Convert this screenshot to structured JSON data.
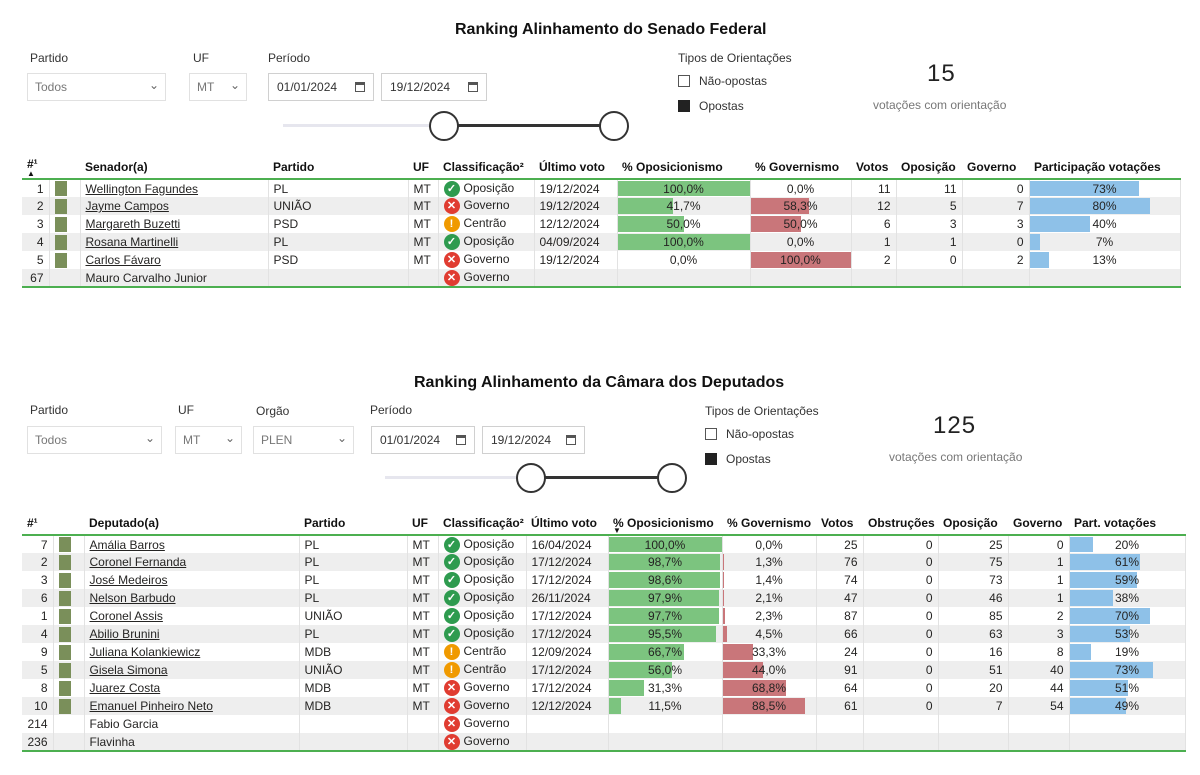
{
  "senado": {
    "title": "Ranking Alinhamento do Senado Federal",
    "filters": {
      "partido_label": "Partido",
      "partido_value": "Todos",
      "uf_label": "UF",
      "uf_value": "MT",
      "periodo_label": "Período",
      "date_start": "01/01/2024",
      "date_end": "19/12/2024"
    },
    "orient": {
      "title": "Tipos de Orientações",
      "opt1": "Não-opostas",
      "opt2": "Opostas"
    },
    "count": "15",
    "count_label": "votações com orientação",
    "headers": {
      "rank": "#¹",
      "name": "Senador(a)",
      "partido": "Partido",
      "uf": "UF",
      "class": "Classificação²",
      "last": "Último voto",
      "opos": "% Oposicionismo",
      "gov": "% Governismo",
      "votos": "Votos",
      "oposicao": "Oposição",
      "governo": "Governo",
      "part": "Participação votações"
    },
    "rows": [
      {
        "rank": "1",
        "name": "Wellington Fagundes",
        "partido": "PL",
        "uf": "MT",
        "class": "Oposição",
        "cls": "op",
        "last": "19/12/2024",
        "opos": "100,0%",
        "op_v": 100.0,
        "gov": "0,0%",
        "gov_v": 0.0,
        "votos": "11",
        "oposicao": "11",
        "governo": "0",
        "part": "73%",
        "part_v": 73
      },
      {
        "rank": "2",
        "name": "Jayme Campos",
        "partido": "UNIÃO",
        "uf": "MT",
        "class": "Governo",
        "cls": "gv",
        "last": "19/12/2024",
        "opos": "41,7%",
        "op_v": 41.7,
        "gov": "58,3%",
        "gov_v": 58.3,
        "votos": "12",
        "oposicao": "5",
        "governo": "7",
        "part": "80%",
        "part_v": 80
      },
      {
        "rank": "3",
        "name": "Margareth Buzetti",
        "partido": "PSD",
        "uf": "MT",
        "class": "Centrão",
        "cls": "ce",
        "last": "12/12/2024",
        "opos": "50,0%",
        "op_v": 50.0,
        "gov": "50,0%",
        "gov_v": 50.0,
        "votos": "6",
        "oposicao": "3",
        "governo": "3",
        "part": "40%",
        "part_v": 40
      },
      {
        "rank": "4",
        "name": "Rosana Martinelli",
        "partido": "PL",
        "uf": "MT",
        "class": "Oposição",
        "cls": "op",
        "last": "04/09/2024",
        "opos": "100,0%",
        "op_v": 100.0,
        "gov": "0,0%",
        "gov_v": 0.0,
        "votos": "1",
        "oposicao": "1",
        "governo": "0",
        "part": "7%",
        "part_v": 7
      },
      {
        "rank": "5",
        "name": "Carlos Fávaro",
        "partido": "PSD",
        "uf": "MT",
        "class": "Governo",
        "cls": "gv",
        "last": "19/12/2024",
        "opos": "0,0%",
        "op_v": 0.0,
        "gov": "100,0%",
        "gov_v": 100.0,
        "votos": "2",
        "oposicao": "0",
        "governo": "2",
        "part": "13%",
        "part_v": 13
      },
      {
        "rank": "67",
        "name": "Mauro Carvalho Junior",
        "partido": "",
        "uf": "",
        "class": "Governo",
        "cls": "gv",
        "last": "",
        "opos": "",
        "op_v": 0,
        "gov": "",
        "gov_v": 0,
        "votos": "",
        "oposicao": "",
        "governo": "",
        "part": "",
        "part_v": 0,
        "nolink": true
      }
    ]
  },
  "camara": {
    "title": "Ranking Alinhamento da Câmara dos Deputados",
    "filters": {
      "partido_label": "Partido",
      "partido_value": "Todos",
      "uf_label": "UF",
      "uf_value": "MT",
      "orgao_label": "Orgão",
      "orgao_value": "PLEN",
      "periodo_label": "Período",
      "date_start": "01/01/2024",
      "date_end": "19/12/2024"
    },
    "orient": {
      "title": "Tipos de Orientações",
      "opt1": "Não-opostas",
      "opt2": "Opostas"
    },
    "count": "125",
    "count_label": "votações com orientação",
    "headers": {
      "rank": "#¹",
      "name": "Deputado(a)",
      "partido": "Partido",
      "uf": "UF",
      "class": "Classificação²",
      "last": "Último voto",
      "opos": "% Oposicionismo",
      "gov": "% Governismo",
      "votos": "Votos",
      "obst": "Obstruções",
      "oposicao": "Oposição",
      "governo": "Governo",
      "part": "Part. votações"
    },
    "rows": [
      {
        "rank": "7",
        "name": "Amália Barros",
        "partido": "PL",
        "uf": "MT",
        "class": "Oposição",
        "cls": "op",
        "last": "16/04/2024",
        "opos": "100,0%",
        "op_v": 100.0,
        "gov": "0,0%",
        "gov_v": 0.0,
        "votos": "25",
        "obst": "0",
        "oposicao": "25",
        "governo": "0",
        "part": "20%",
        "part_v": 20
      },
      {
        "rank": "2",
        "name": "Coronel Fernanda",
        "partido": "PL",
        "uf": "MT",
        "class": "Oposição",
        "cls": "op",
        "last": "17/12/2024",
        "opos": "98,7%",
        "op_v": 98.7,
        "gov": "1,3%",
        "gov_v": 1.3,
        "votos": "76",
        "obst": "0",
        "oposicao": "75",
        "governo": "1",
        "part": "61%",
        "part_v": 61
      },
      {
        "rank": "3",
        "name": "José Medeiros",
        "partido": "PL",
        "uf": "MT",
        "class": "Oposição",
        "cls": "op",
        "last": "17/12/2024",
        "opos": "98,6%",
        "op_v": 98.6,
        "gov": "1,4%",
        "gov_v": 1.4,
        "votos": "74",
        "obst": "0",
        "oposicao": "73",
        "governo": "1",
        "part": "59%",
        "part_v": 59
      },
      {
        "rank": "6",
        "name": "Nelson Barbudo",
        "partido": "PL",
        "uf": "MT",
        "class": "Oposição",
        "cls": "op",
        "last": "26/11/2024",
        "opos": "97,9%",
        "op_v": 97.9,
        "gov": "2,1%",
        "gov_v": 2.1,
        "votos": "47",
        "obst": "0",
        "oposicao": "46",
        "governo": "1",
        "part": "38%",
        "part_v": 38
      },
      {
        "rank": "1",
        "name": "Coronel Assis",
        "partido": "UNIÃO",
        "uf": "MT",
        "class": "Oposição",
        "cls": "op",
        "last": "17/12/2024",
        "opos": "97,7%",
        "op_v": 97.7,
        "gov": "2,3%",
        "gov_v": 2.3,
        "votos": "87",
        "obst": "0",
        "oposicao": "85",
        "governo": "2",
        "part": "70%",
        "part_v": 70
      },
      {
        "rank": "4",
        "name": "Abilio Brunini",
        "partido": "PL",
        "uf": "MT",
        "class": "Oposição",
        "cls": "op",
        "last": "17/12/2024",
        "opos": "95,5%",
        "op_v": 95.5,
        "gov": "4,5%",
        "gov_v": 4.5,
        "votos": "66",
        "obst": "0",
        "oposicao": "63",
        "governo": "3",
        "part": "53%",
        "part_v": 53
      },
      {
        "rank": "9",
        "name": "Juliana Kolankiewicz",
        "partido": "MDB",
        "uf": "MT",
        "class": "Centrão",
        "cls": "ce",
        "last": "12/09/2024",
        "opos": "66,7%",
        "op_v": 66.7,
        "gov": "33,3%",
        "gov_v": 33.3,
        "votos": "24",
        "obst": "0",
        "oposicao": "16",
        "governo": "8",
        "part": "19%",
        "part_v": 19
      },
      {
        "rank": "5",
        "name": "Gisela Simona",
        "partido": "UNIÃO",
        "uf": "MT",
        "class": "Centrão",
        "cls": "ce",
        "last": "17/12/2024",
        "opos": "56,0%",
        "op_v": 56.0,
        "gov": "44,0%",
        "gov_v": 44.0,
        "votos": "91",
        "obst": "0",
        "oposicao": "51",
        "governo": "40",
        "part": "73%",
        "part_v": 73
      },
      {
        "rank": "8",
        "name": "Juarez Costa",
        "partido": "MDB",
        "uf": "MT",
        "class": "Governo",
        "cls": "gv",
        "last": "17/12/2024",
        "opos": "31,3%",
        "op_v": 31.3,
        "gov": "68,8%",
        "gov_v": 68.8,
        "votos": "64",
        "obst": "0",
        "oposicao": "20",
        "governo": "44",
        "part": "51%",
        "part_v": 51
      },
      {
        "rank": "10",
        "name": "Emanuel Pinheiro Neto",
        "partido": "MDB",
        "uf": "MT",
        "class": "Governo",
        "cls": "gv",
        "last": "12/12/2024",
        "opos": "11,5%",
        "op_v": 11.5,
        "gov": "88,5%",
        "gov_v": 88.5,
        "votos": "61",
        "obst": "0",
        "oposicao": "7",
        "governo": "54",
        "part": "49%",
        "part_v": 49
      },
      {
        "rank": "214",
        "name": "Fabio Garcia",
        "partido": "",
        "uf": "",
        "class": "Governo",
        "cls": "gv",
        "last": "",
        "opos": "",
        "op_v": 0,
        "gov": "",
        "gov_v": 0,
        "votos": "",
        "obst": "",
        "oposicao": "",
        "governo": "",
        "part": "",
        "part_v": 0,
        "nolink": true
      },
      {
        "rank": "236",
        "name": "Flavinha",
        "partido": "",
        "uf": "",
        "class": "Governo",
        "cls": "gv",
        "last": "",
        "opos": "",
        "op_v": 0,
        "gov": "",
        "gov_v": 0,
        "votos": "",
        "obst": "",
        "oposicao": "",
        "governo": "",
        "part": "",
        "part_v": 0,
        "nolink": true
      }
    ]
  }
}
